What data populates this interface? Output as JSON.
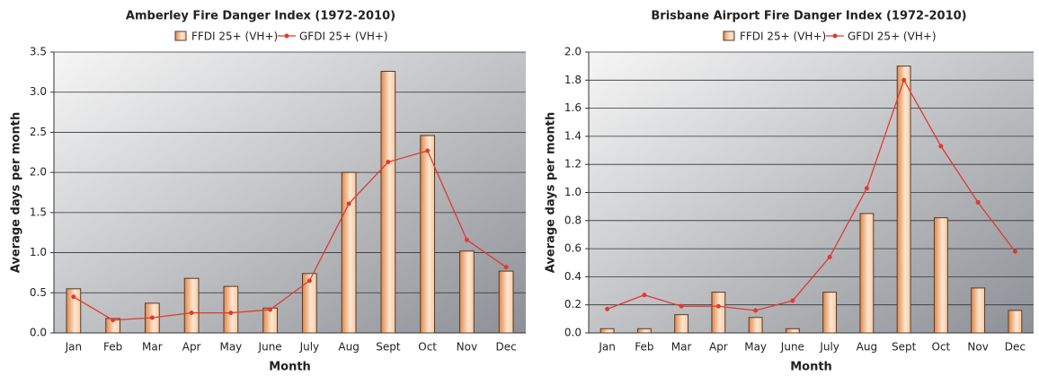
{
  "chart_data": [
    {
      "type": "bar",
      "title": "Amberley Fire Danger Index (1972-2010)",
      "x_label": "Month",
      "y_label": "Average days per month",
      "categories": [
        "Jan",
        "Feb",
        "Mar",
        "Apr",
        "May",
        "June",
        "July",
        "Aug",
        "Sept",
        "Oct",
        "Nov",
        "Dec"
      ],
      "series": [
        {
          "name": "FFDI 25+ (VH+)",
          "type": "bar",
          "color": "#e8935a",
          "values": [
            0.55,
            0.18,
            0.37,
            0.68,
            0.58,
            0.31,
            0.74,
            2.0,
            3.26,
            2.46,
            1.02,
            0.77
          ]
        },
        {
          "name": "GFDI 25+ (VH+)",
          "type": "line",
          "color": "#e03a2f",
          "values": [
            0.45,
            0.16,
            0.19,
            0.25,
            0.25,
            0.29,
            0.65,
            1.61,
            2.13,
            2.27,
            1.16,
            0.82
          ]
        }
      ],
      "ylim": [
        0,
        3.5
      ],
      "yticks": [
        {
          "value": 0,
          "label": "0.0"
        },
        0.5,
        {
          "value": 1,
          "label": "1.0"
        },
        1.5,
        {
          "value": 2,
          "label": "2.0"
        },
        2.5,
        {
          "value": 3,
          "label": "3.0"
        },
        3.5
      ],
      "grid": true
    },
    {
      "type": "bar",
      "title": "Brisbane Airport Fire Danger Index (1972-2010)",
      "x_label": "Month",
      "y_label": "Average days per month",
      "categories": [
        "Jan",
        "Feb",
        "Mar",
        "Apr",
        "May",
        "June",
        "July",
        "Aug",
        "Sept",
        "Oct",
        "Nov",
        "Dec"
      ],
      "series": [
        {
          "name": "FFDI 25+ (VH+)",
          "type": "bar",
          "color": "#e8935a",
          "values": [
            0.03,
            0.03,
            0.13,
            0.29,
            0.11,
            0.03,
            0.29,
            0.85,
            1.9,
            0.82,
            0.32,
            0.16
          ]
        },
        {
          "name": "GFDI 25+ (VH+)",
          "type": "line",
          "color": "#e03a2f",
          "values": [
            0.17,
            0.27,
            0.19,
            0.19,
            0.16,
            0.23,
            0.54,
            1.03,
            1.8,
            1.33,
            0.93,
            0.58
          ]
        }
      ],
      "ylim": [
        0,
        2
      ],
      "yticks": [
        {
          "value": 0,
          "label": "0.0"
        },
        0.2,
        0.4,
        0.6,
        0.8,
        {
          "value": 1,
          "label": "1.0"
        },
        1.2,
        1.4,
        1.6,
        1.8,
        {
          "value": 2,
          "label": "2.0"
        }
      ],
      "grid": true
    }
  ]
}
